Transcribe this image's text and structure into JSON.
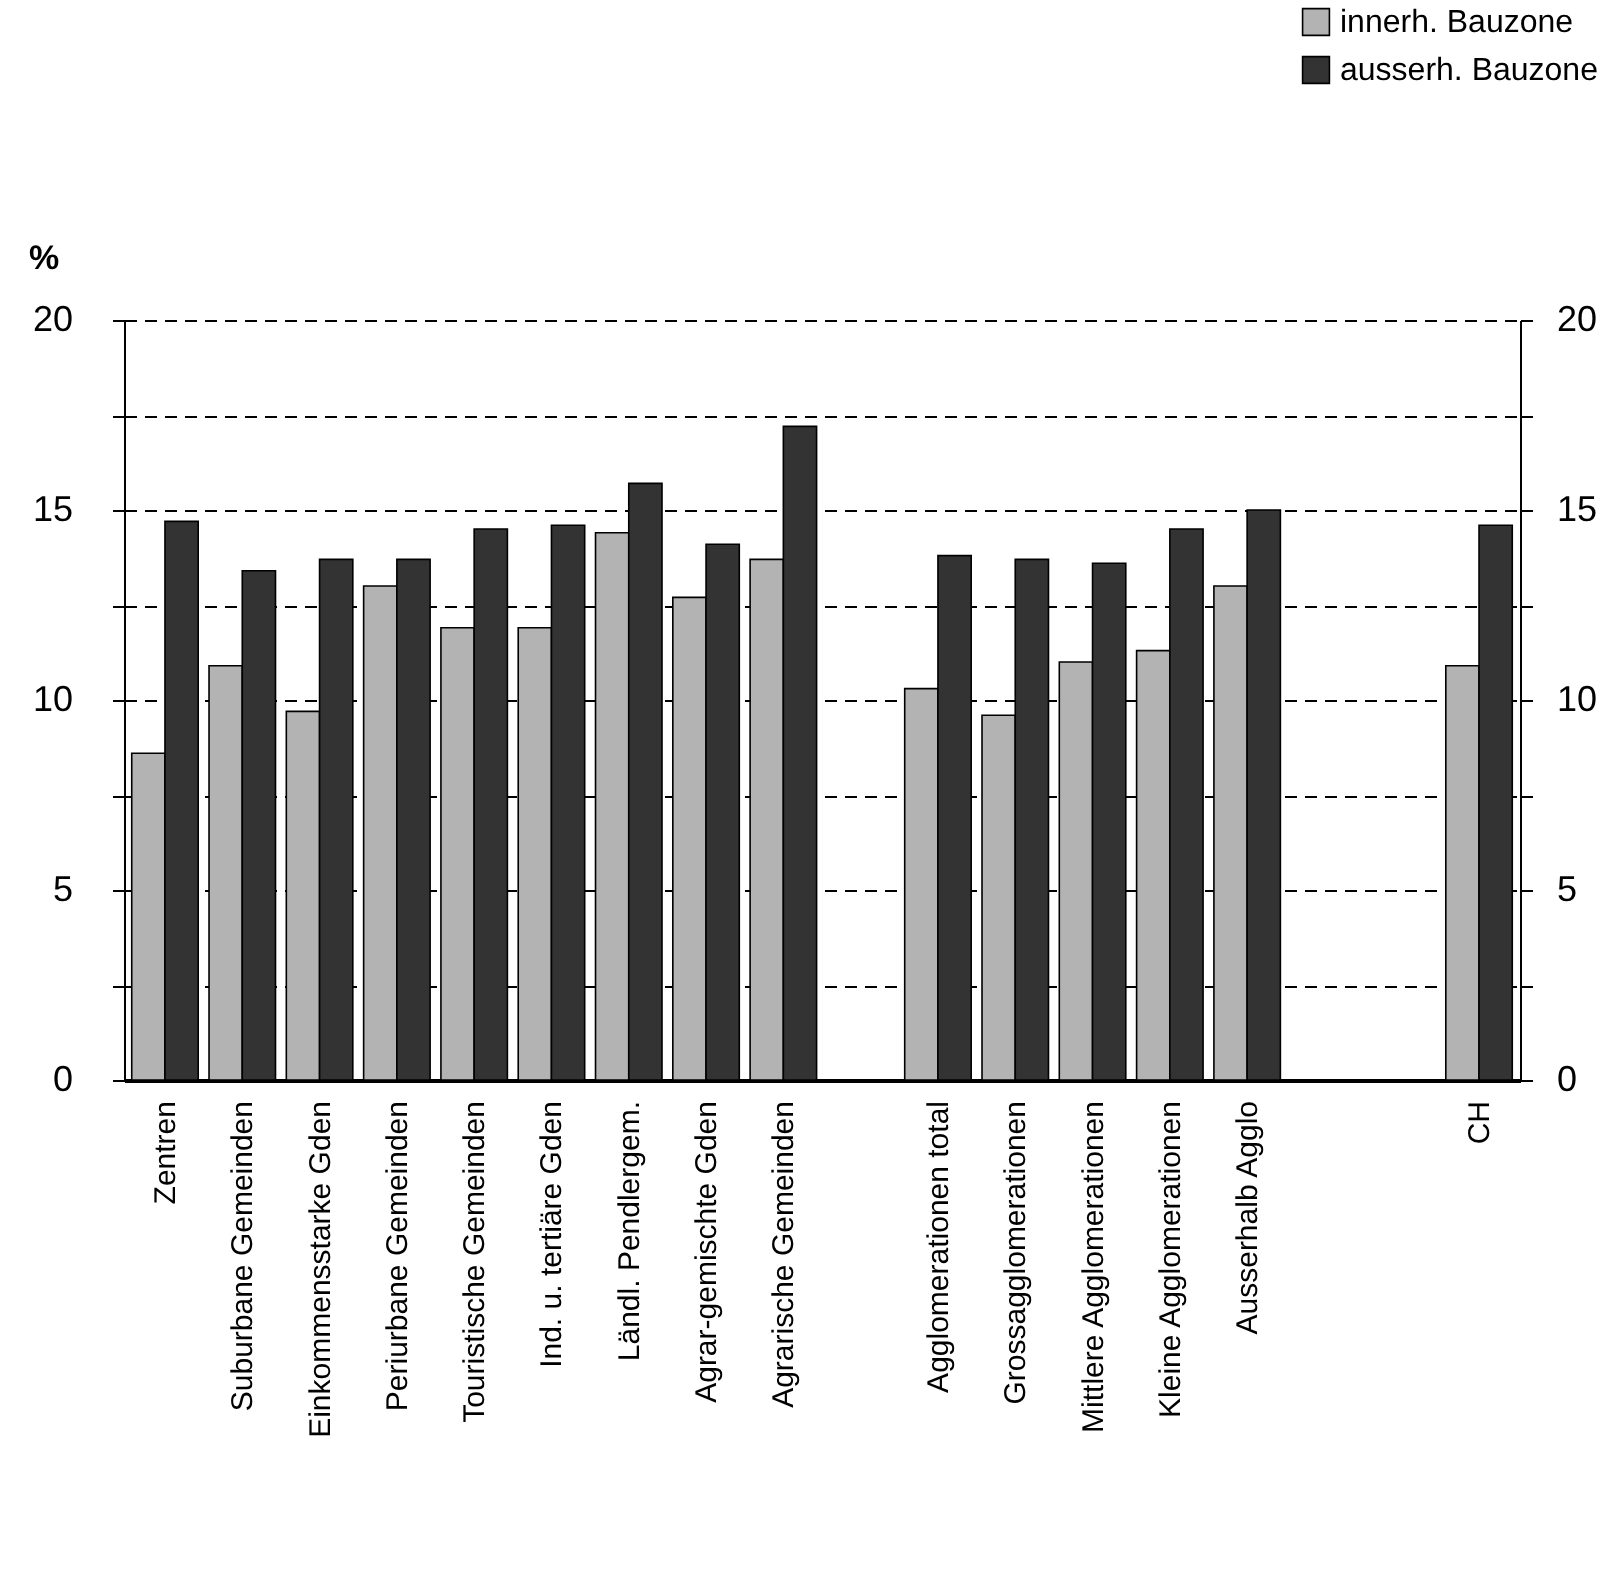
{
  "chart_data": {
    "type": "bar",
    "ylabel": "%",
    "categories": [
      "Zentren",
      "Suburbane Gemeinden",
      "Einkommensstarke Gden",
      "Periurbane Gemeinden",
      "Touristische Gemeinden",
      "Ind. u. tertiäre Gden",
      "Ländl. Pendlergem.",
      "Agrar-gemischte Gden",
      "Agrarische Gemeinden",
      null,
      "Agglomerationen total",
      "Grossagglomerationen",
      "Mittlere Agglomerationen",
      "Kleine Agglomerationen",
      "Ausserhalb Agglo",
      null,
      null,
      "CH"
    ],
    "series": [
      {
        "name": "innerh. Bauzone",
        "color": "#b3b3b3",
        "values": [
          8.6,
          10.9,
          9.7,
          13.0,
          11.9,
          11.9,
          14.4,
          12.7,
          13.7,
          null,
          10.3,
          9.6,
          11.0,
          11.3,
          13.0,
          null,
          null,
          10.9
        ]
      },
      {
        "name": "ausserh. Bauzone",
        "color": "#333333",
        "values": [
          14.7,
          13.4,
          13.7,
          13.7,
          14.5,
          14.6,
          15.7,
          14.1,
          17.2,
          null,
          13.8,
          13.7,
          13.6,
          14.5,
          15.0,
          null,
          null,
          14.6
        ]
      }
    ],
    "ylim": [
      0,
      20
    ],
    "yticks": [
      0,
      {
        "value": 2.5,
        "label": null
      },
      5,
      {
        "value": 7.5,
        "label": null
      },
      10,
      {
        "value": 12.5,
        "label": null
      },
      15,
      {
        "value": 17.5,
        "label": null
      },
      20
    ],
    "y2lim": [
      0,
      20
    ],
    "y2ticks": [
      0,
      {
        "value": 2.5,
        "label": null
      },
      5,
      {
        "value": 7.5,
        "label": null
      },
      10,
      {
        "value": 12.5,
        "label": null
      },
      15,
      {
        "value": 17.5,
        "label": null
      },
      20
    ],
    "grid": "y",
    "legend": "top right"
  }
}
